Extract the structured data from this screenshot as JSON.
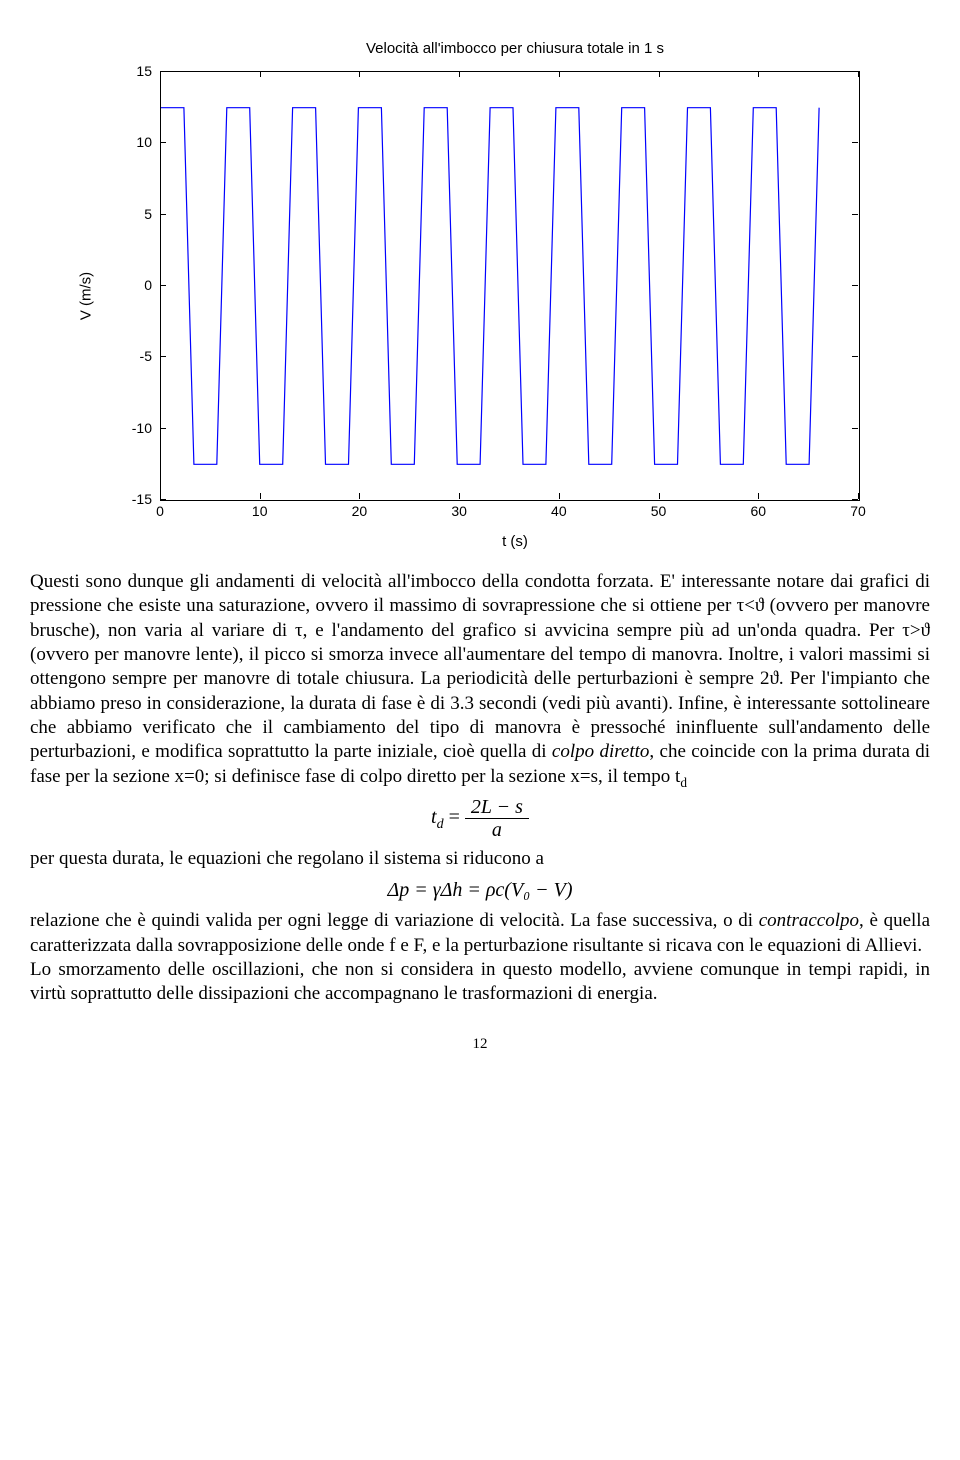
{
  "chart": {
    "type": "line",
    "title": "Velocità all'imbocco per chiusura totale in 1 s",
    "ylabel": "V (m/s)",
    "xlabel": "t (s)",
    "xlim": [
      0,
      70
    ],
    "ylim": [
      -15,
      15
    ],
    "xticks": [
      0,
      10,
      20,
      30,
      40,
      50,
      60,
      70
    ],
    "yticks": [
      -15,
      -10,
      -5,
      0,
      5,
      10,
      15
    ],
    "line_color": "#0000ff",
    "line_width": 1.2,
    "background": "#ffffff",
    "border_color": "#000000",
    "tick_fontsize": 14,
    "label_fontsize": 15,
    "title_fontsize": 15,
    "title_font": "Arial",
    "label_font": "Arial",
    "square_wave": {
      "period": 6.6,
      "high": 12.5,
      "low": -12.5,
      "n_cycles": 10,
      "rise_time": 1.0,
      "t_start": 0,
      "t_end": 65
    }
  },
  "text": {
    "p1a": "Questi sono dunque gli andamenti di velocità all'imbocco della condotta forzata. E' interessante notare dai grafici di pressione che esiste una saturazione, ovvero il massimo di sovrapressione che si ottiene per τ<ϑ (ovvero per manovre brusche), non varia al variare di τ, e l'andamento del grafico si avvicina sempre più ad un'onda quadra. Per τ>ϑ (ovvero per manovre lente), il picco si smorza invece all'aumentare del tempo di manovra. Inoltre, i valori massimi si ottengono sempre per manovre di totale chiusura. La periodicità delle perturbazioni è sempre 2ϑ. Per l'impianto che abbiamo preso in considerazione, la durata di fase è di 3.3 secondi (vedi più avanti). Infine, è interessante sottolineare che abbiamo verificato che il cambiamento del tipo di manovra è pressoché ininfluente sull'andamento delle perturbazioni, e modifica soprattutto la parte iniziale, cioè quella di ",
    "p1_it1": "colpo diretto",
    "p1b": ", che coincide con la prima durata di fase per la sezione x=0; si definisce fase di colpo diretto per la sezione x=s, il tempo t",
    "p1_sub": "d",
    "formula1_lhs": "t",
    "formula1_sub": "d",
    "formula1_eq": " = ",
    "formula1_num": "2L − s",
    "formula1_den": "a",
    "p2": "per questa durata, le equazioni che regolano il sistema si riducono a",
    "formula2": "Δp = γΔh = ρc(V₀ − V)",
    "p3a": "relazione che è quindi valida per ogni legge di variazione di velocità. La fase successiva, o di ",
    "p3_it": "contraccolpo",
    "p3b": ", è quella caratterizzata dalla sovrapposizione delle onde f e F, e la perturbazione risultante si ricava con le equazioni di Allievi.",
    "p4": "Lo smorzamento delle oscillazioni, che non si considera in questo modello, avviene comunque in tempi rapidi, in virtù soprattutto delle dissipazioni che accompagnano le trasformazioni di energia.",
    "page": "12"
  }
}
